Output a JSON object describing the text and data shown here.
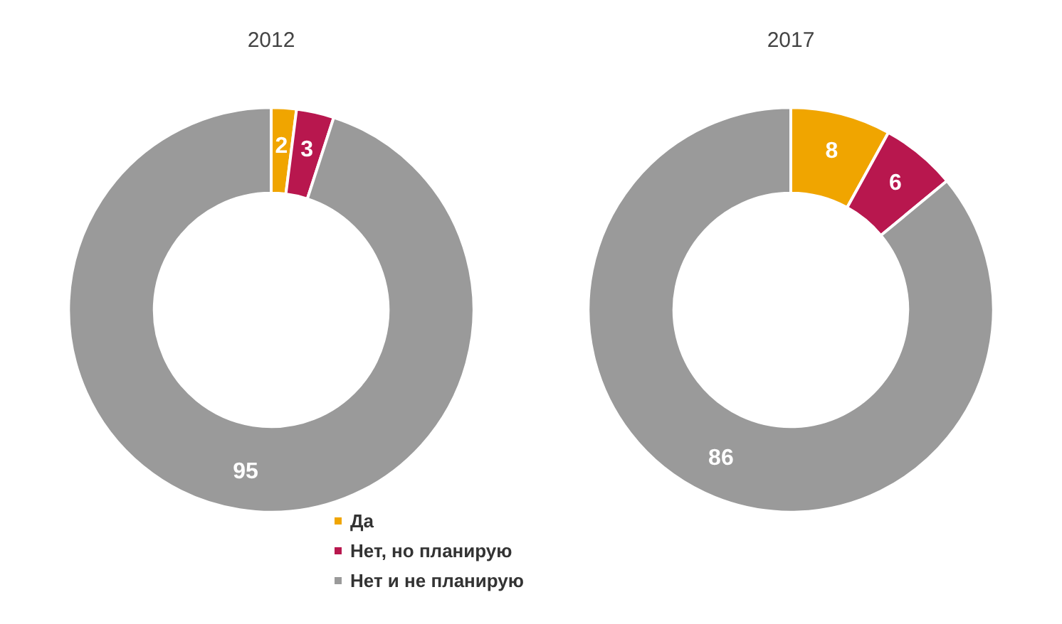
{
  "chart_data": [
    {
      "type": "donut",
      "title": "2012",
      "categories": [
        "Да",
        "Нет, но планирую",
        "Нет и не планирую"
      ],
      "values": [
        2,
        3,
        95
      ],
      "colors": [
        "#f0a500",
        "#b8174e",
        "#9a9a9a"
      ],
      "data_labels": true,
      "legend": "bottom right"
    },
    {
      "type": "donut",
      "title": "2017",
      "categories": [
        null,
        null,
        null
      ],
      "values": [
        8,
        6,
        86
      ],
      "colors": [
        "#f0a500",
        "#b8174e",
        "#9a9a9a"
      ],
      "data_labels": true
    }
  ]
}
